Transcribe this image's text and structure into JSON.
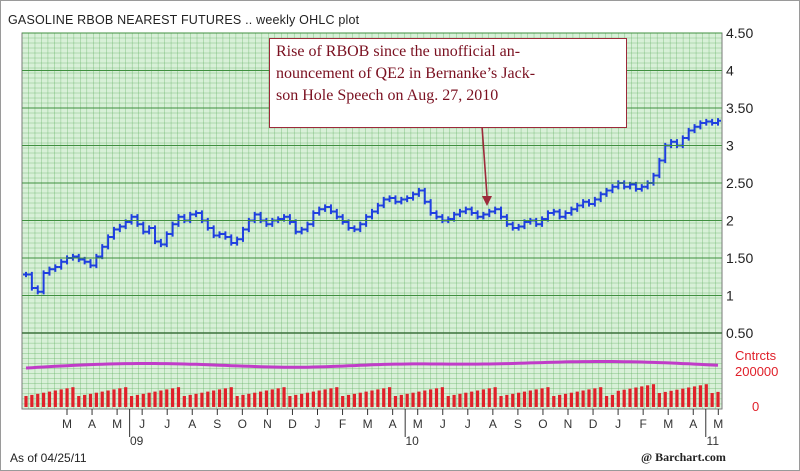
{
  "title": "GASOLINE RBOB NEAREST FUTURES .. weekly OHLC plot",
  "annotation": "Rise of RBOB since the unofficial an-\nnouncement of QE2 in Bernanke’s Jack-\nson Hole Speech on Aug. 27, 2010",
  "footer": {
    "as_of": "As of 04/25/11",
    "source": "@ Barchart.com"
  },
  "colors": {
    "price_bars": "#1f3fe0",
    "open_interest": "#c03cc8",
    "volume": "#e0202a",
    "grid": "#5fae5f",
    "plot_bg": "#d8f0d8",
    "annotation": "#7a1020"
  },
  "chart_data": {
    "type": "ohlc",
    "price": {
      "yticks": [
        "0.50",
        "1",
        "1.50",
        "2",
        "2.50",
        "3",
        "3.50",
        "4",
        "4.50"
      ],
      "ylim": [
        0.5,
        4.5
      ],
      "series": [
        {
          "name": "",
          "values": [
            1.28,
            1.1,
            1.05,
            1.3,
            1.35,
            1.38,
            1.45,
            1.5,
            1.52,
            1.48,
            1.45,
            1.4,
            1.52,
            1.65,
            1.78,
            1.88,
            1.92,
            1.98,
            2.05,
            1.95,
            1.85,
            1.9,
            1.72,
            1.68,
            1.82,
            1.95,
            2.05,
            2.0,
            2.08,
            2.1,
            2.0,
            1.9,
            1.8,
            1.82,
            1.78,
            1.7,
            1.75,
            1.88,
            2.0,
            2.08,
            2.0,
            1.95,
            2.0,
            2.02,
            2.05,
            1.98,
            1.85,
            1.88,
            1.95,
            2.1,
            2.15,
            2.18,
            2.12,
            2.05,
            1.98,
            1.9,
            1.88,
            1.95,
            2.05,
            2.12,
            2.2,
            2.28,
            2.3,
            2.25,
            2.28,
            2.3,
            2.35,
            2.4,
            2.25,
            2.1,
            2.05,
            2.0,
            2.02,
            2.08,
            2.12,
            2.15,
            2.1,
            2.05,
            2.08,
            2.12,
            2.15,
            2.05,
            1.95,
            1.9,
            1.92,
            1.98,
            2.0,
            1.95,
            2.02,
            2.1,
            2.12,
            2.05,
            2.1,
            2.15,
            2.2,
            2.25,
            2.22,
            2.28,
            2.35,
            2.4,
            2.45,
            2.5,
            2.45,
            2.48,
            2.42,
            2.45,
            2.5,
            2.6,
            2.8,
            3.0,
            3.05,
            3.0,
            3.1,
            3.2,
            3.25,
            3.3,
            3.32,
            3.3,
            3.33
          ]
        }
      ]
    },
    "open_interest": {
      "label": "Cntrcts",
      "ytick": "200000"
    },
    "volume": {
      "ytick": "0"
    },
    "x": {
      "month_labels": [
        "M",
        "A",
        "M",
        "J",
        "J",
        "A",
        "S",
        "O",
        "N",
        "D",
        "J",
        "F",
        "M",
        "A",
        "M",
        "J",
        "J",
        "A",
        "S",
        "O",
        "N",
        "D",
        "J",
        "F",
        "M",
        "A",
        "M"
      ],
      "year_labels": [
        "09",
        "10",
        "11"
      ]
    }
  }
}
